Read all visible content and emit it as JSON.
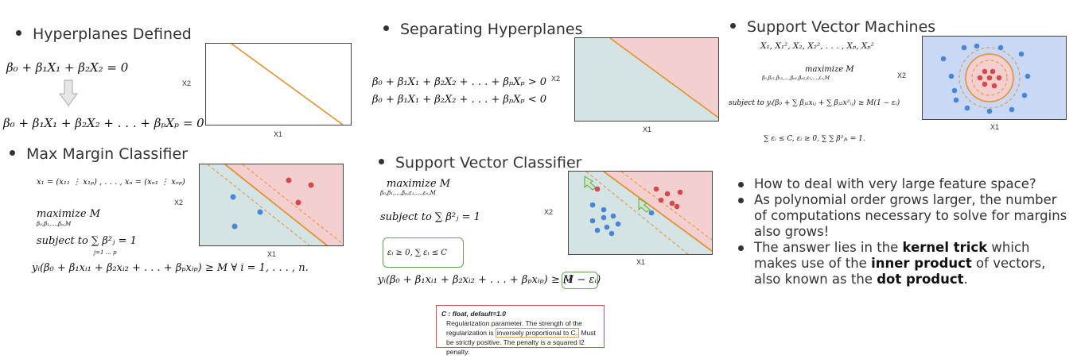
{
  "colors": {
    "line": "#e8902e",
    "red_region": "#f4cfd0",
    "blue_region": "#d4e3e4",
    "red_point": "#d24a4a",
    "blue_point": "#4a86d8",
    "svm_bg": "#c8d8f5",
    "svm_ring": "#f4cfd0",
    "green": "#5aa84a"
  },
  "sections": {
    "hyperplanes": {
      "heading": "Hyperplanes Defined",
      "eq1": "β₀ + β₁X₁ + β₂X₂ = 0",
      "eq2": "β₀ + β₁X₁ + β₂X₂ + . . . + βₚXₚ = 0",
      "xlabel": "X1",
      "ylabel": "X2"
    },
    "max_margin": {
      "heading": "Max Margin Classifier",
      "vec1": "x₁ = (x₁₁ ⋮ x₁ₚ) , . . . , xₙ = (xₙ₁ ⋮ xₙₚ)",
      "maximize": "maximize M",
      "maximize_sub": "β₀,β₁,...,βₚ,M",
      "subject": "subject to  ∑ β²ⱼ = 1",
      "subject_sub": "j=1 … p",
      "constraint": "yᵢ(β₀ + β₁xᵢ₁ + β₂xᵢ₂ + . . . + βₚxᵢₚ) ≥ M  ∀ i = 1, . . . , n.",
      "xlabel": "X1",
      "ylabel": "X2"
    },
    "separating": {
      "heading": "Separating Hyperplanes",
      "eq1": "β₀ + β₁X₁ + β₂X₂ + . . . + βₚXₚ > 0",
      "eq2": "β₀ + β₁X₁ + β₂X₂ + . . . + βₚXₚ < 0",
      "xlabel": "X1",
      "ylabel": "X2"
    },
    "svc": {
      "heading": "Support Vector Classifier",
      "maximize": "maximize M",
      "maximize_sub": "β₀,β₁,...,βₚ,ε₁,...,εₙ,M",
      "subject": "subject to  ∑ β²ⱼ = 1",
      "slack": "εᵢ ≥ 0,  ∑ εᵢ ≤ C",
      "constraint": "yᵢ(β₀ + β₁xᵢ₁ + β₂xᵢ₂ + . . . + βₚxᵢₚ) ≥ M",
      "constraint_tail": "(1 − εᵢ)",
      "xlabel": "X1",
      "ylabel": "X2",
      "doc_title": "C : float, default=1.0",
      "doc_text_1": "Regularization parameter. The strength of the regularization is",
      "doc_highlight": "inversely proportional to C.",
      "doc_text_2": "Must be strictly positive. The penalty is a squared l2 penalty."
    },
    "svm": {
      "heading": "Support Vector Machines",
      "features": "X₁, X₁², X₂, X₂², . . . , Xₚ, Xₚ²",
      "maximize": "maximize M",
      "maximize_sub": "β₀,β₁₁,β₁₂,...,βₚ₁,βₚ₂,ε₁,...,εₙ,M",
      "subject": "subject to yᵢ(β₀ + ∑ βⱼ₁xᵢⱼ + ∑ βⱼ₂x²ᵢⱼ) ≥ M(1 − εᵢ)",
      "constraints": "∑ εᵢ ≤ C,  εᵢ ≥ 0,  ∑ ∑ β²ⱼₖ = 1.",
      "xlabel": "X1",
      "ylabel": "X2"
    },
    "kernel_notes": {
      "b1": "How to deal with very large feature space?",
      "b2": "As polynomial order grows larger, the number of computations necessary to solve for margins also grows!",
      "b3_pre": "The answer lies in the ",
      "b3_kernel": "kernel trick",
      "b3_mid": " which makes use of the ",
      "b3_inner": "inner product",
      "b3_mid2": " of vectors, also known as the ",
      "b3_dot": "dot product",
      "b3_end": "."
    }
  }
}
